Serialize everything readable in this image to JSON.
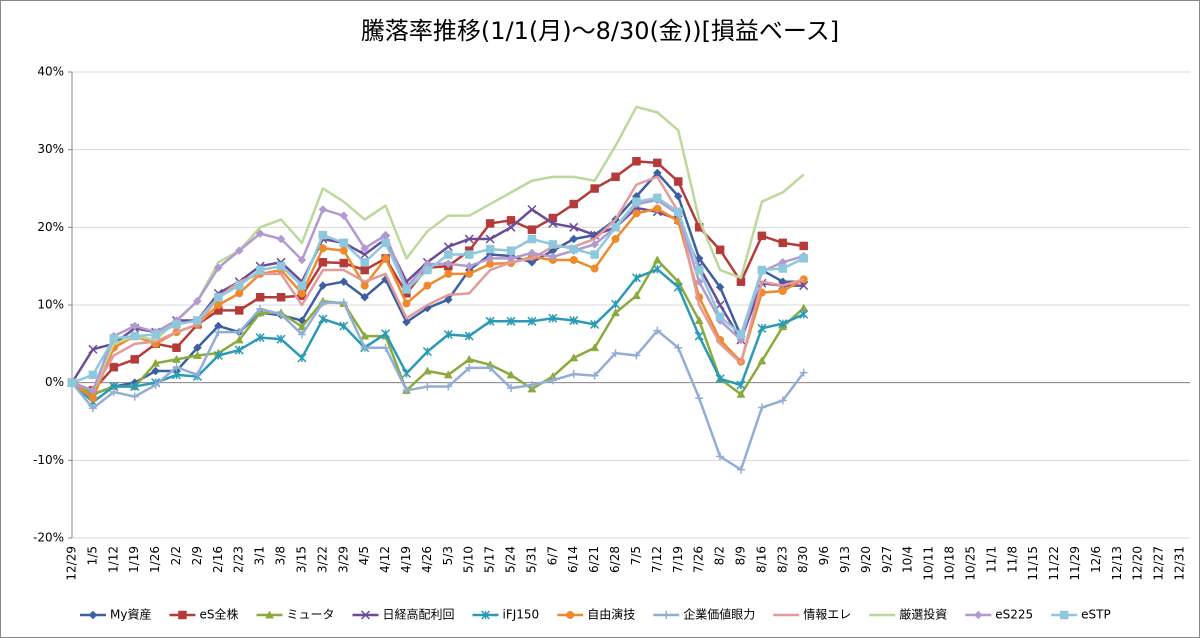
{
  "chart_data": {
    "type": "line",
    "title": "騰落率推移(1/1(月)～8/30(金))[損益ベース]",
    "categories": [
      "12/29",
      "1/5",
      "1/12",
      "1/19",
      "1/26",
      "2/2",
      "2/9",
      "2/16",
      "2/23",
      "3/1",
      "3/8",
      "3/15",
      "3/22",
      "3/29",
      "4/5",
      "4/12",
      "4/19",
      "4/26",
      "5/3",
      "5/10",
      "5/17",
      "5/24",
      "5/31",
      "6/7",
      "6/14",
      "6/21",
      "6/28",
      "7/5",
      "7/12",
      "7/19",
      "7/26",
      "8/2",
      "8/9",
      "8/16",
      "8/23",
      "8/30",
      "9/6",
      "9/13",
      "9/20",
      "9/27",
      "10/4",
      "10/11",
      "10/18",
      "10/25",
      "11/1",
      "11/8",
      "11/15",
      "11/22",
      "11/29",
      "12/6",
      "12/13",
      "12/20",
      "12/27",
      "12/31"
    ],
    "ylim": [
      -20,
      40
    ],
    "yticks": [
      {
        "value": -20,
        "label": "-20%"
      },
      {
        "value": -10,
        "label": "-10%"
      },
      {
        "value": 0,
        "label": "0%"
      },
      {
        "value": 10,
        "label": "10%"
      },
      {
        "value": 20,
        "label": "20%"
      },
      {
        "value": 30,
        "label": "30%"
      },
      {
        "value": 40,
        "label": "40%"
      }
    ],
    "grid": true,
    "legend": "bottom",
    "series": [
      {
        "name": "My資産",
        "color": "#3b5fa0",
        "marker": "diamond",
        "values": [
          0,
          -1.5,
          -0.5,
          0,
          1.5,
          1.5,
          4.5,
          7.3,
          6.5,
          9,
          8.7,
          8,
          12.5,
          13,
          11,
          13.3,
          7.8,
          9.6,
          10.7,
          14.5,
          16.5,
          16.3,
          15.5,
          17,
          18.5,
          19,
          21,
          24,
          27,
          24,
          16,
          12.3,
          6,
          14.5,
          13,
          13,
          null,
          null,
          null,
          null,
          null,
          null,
          null,
          null,
          null,
          null,
          null,
          null,
          null,
          null,
          null,
          null,
          null,
          null
        ]
      },
      {
        "name": "eS全株",
        "color": "#b53a3a",
        "marker": "square",
        "values": [
          0,
          -1,
          2,
          3,
          5,
          4.5,
          7.5,
          9.3,
          9.3,
          11,
          11,
          11.2,
          15.5,
          15.4,
          14.5,
          16,
          11.5,
          14.8,
          15,
          17,
          20.5,
          20.9,
          19.7,
          21.2,
          23,
          25,
          26.5,
          28.5,
          28.3,
          25.9,
          20,
          17.1,
          13,
          18.9,
          18,
          17.6,
          null,
          null,
          null,
          null,
          null,
          null,
          null,
          null,
          null,
          null,
          null,
          null,
          null,
          null,
          null,
          null,
          null,
          null
        ]
      },
      {
        "name": "ミュータ",
        "color": "#8aab3c",
        "marker": "triangle",
        "values": [
          0,
          -1.5,
          -0.5,
          -0.5,
          2.5,
          3,
          3.5,
          3.8,
          5.5,
          9,
          9,
          7.2,
          10.5,
          10.2,
          6,
          6,
          -1,
          1.5,
          1,
          3,
          2.3,
          1,
          -0.8,
          0.8,
          3.2,
          4.5,
          9,
          11.2,
          15.8,
          13,
          8,
          0.5,
          -1.5,
          2.8,
          7.2,
          9.6,
          null,
          null,
          null,
          null,
          null,
          null,
          null,
          null,
          null,
          null,
          null,
          null,
          null,
          null,
          null,
          null,
          null,
          null
        ]
      },
      {
        "name": "日経高配利回",
        "color": "#6a4d98",
        "marker": "x",
        "values": [
          0,
          4.3,
          5,
          7,
          6.5,
          8,
          8,
          11.5,
          13,
          15,
          15.5,
          13,
          18.5,
          18,
          16.5,
          18.5,
          13,
          15.5,
          17.5,
          18.5,
          18.5,
          20,
          22.3,
          20.5,
          20,
          19,
          20,
          22.5,
          22,
          21,
          15,
          10,
          5.5,
          12.8,
          12.5,
          12.5,
          null,
          null,
          null,
          null,
          null,
          null,
          null,
          null,
          null,
          null,
          null,
          null,
          null,
          null,
          null,
          null,
          null,
          null
        ]
      },
      {
        "name": "iFJ150",
        "color": "#2a9ab5",
        "marker": "asterisk",
        "values": [
          0,
          -2.5,
          -0.5,
          -0.5,
          0,
          1,
          0.8,
          3.5,
          4.2,
          5.8,
          5.6,
          3.2,
          8.2,
          7.3,
          4.5,
          6.3,
          1.2,
          4,
          6.2,
          6,
          7.9,
          7.9,
          7.9,
          8.3,
          8,
          7.5,
          10.1,
          13.5,
          14.6,
          12.3,
          6,
          0.5,
          -0.3,
          7,
          7.6,
          8.8,
          null,
          null,
          null,
          null,
          null,
          null,
          null,
          null,
          null,
          null,
          null,
          null,
          null,
          null,
          null,
          null,
          null,
          null
        ]
      },
      {
        "name": "自由演技",
        "color": "#ef8a2c",
        "marker": "circle",
        "values": [
          0,
          -2,
          4.5,
          6,
          5,
          6.5,
          7.5,
          10,
          11.5,
          14,
          14.5,
          11.5,
          17.3,
          17,
          12.5,
          16,
          10.2,
          12.5,
          14,
          14,
          15.3,
          15.4,
          16.2,
          15.8,
          15.8,
          14.7,
          18.5,
          21.8,
          22.4,
          20.8,
          11,
          5.5,
          2.7,
          11.6,
          11.8,
          13.3,
          null,
          null,
          null,
          null,
          null,
          null,
          null,
          null,
          null,
          null,
          null,
          null,
          null,
          null,
          null,
          null,
          null,
          null
        ]
      },
      {
        "name": "企業価値眼力",
        "color": "#93aed6",
        "marker": "plus",
        "values": [
          0,
          -3.3,
          -1.2,
          -1.8,
          -0.3,
          2,
          1,
          6.5,
          6.5,
          9.5,
          8.8,
          6.2,
          10.3,
          10.3,
          4.5,
          4.5,
          -1,
          -0.5,
          -0.5,
          1.9,
          1.9,
          -0.7,
          -0.3,
          0.3,
          1.1,
          0.9,
          3.8,
          3.5,
          6.7,
          4.5,
          -2,
          -9.5,
          -11.2,
          -3.2,
          -2.3,
          1.3,
          null,
          null,
          null,
          null,
          null,
          null,
          null,
          null,
          null,
          null,
          null,
          null,
          null,
          null,
          null,
          null,
          null,
          null
        ]
      },
      {
        "name": "情報エレ",
        "color": "#e39a9a",
        "marker": "none",
        "values": [
          0,
          -1,
          3.5,
          5,
          5.3,
          6.5,
          7.5,
          11,
          13,
          14,
          14,
          10,
          14.5,
          14.5,
          13,
          14,
          8.3,
          10,
          11.3,
          11.5,
          14.5,
          15.5,
          16,
          17.5,
          17.5,
          18.5,
          21,
          25.5,
          26.5,
          22,
          10,
          5,
          2.5,
          13,
          12.5,
          13.3,
          null,
          null,
          null,
          null,
          null,
          null,
          null,
          null,
          null,
          null,
          null,
          null,
          null,
          null,
          null,
          null,
          null,
          null
        ]
      },
      {
        "name": "厳選投資",
        "color": "#bcd89a",
        "marker": "none",
        "values": [
          0,
          -1,
          5,
          6,
          5.5,
          8,
          10.5,
          15.5,
          17,
          20,
          21,
          18,
          25,
          23.3,
          21,
          22.8,
          16,
          19.5,
          21.5,
          21.5,
          23,
          24.5,
          26,
          26.5,
          26.5,
          26,
          30.5,
          35.5,
          34.8,
          32.5,
          21,
          14.5,
          13.5,
          23.3,
          24.5,
          26.8,
          null,
          null,
          null,
          null,
          null,
          null,
          null,
          null,
          null,
          null,
          null,
          null,
          null,
          null,
          null,
          null,
          null,
          null
        ]
      },
      {
        "name": "eS225",
        "color": "#b29ad0",
        "marker": "diamond",
        "values": [
          0,
          -1,
          6,
          7.3,
          6.5,
          8,
          10.5,
          14.8,
          17,
          19.2,
          18.5,
          15.8,
          22.3,
          21.5,
          17.3,
          19,
          12.3,
          15.3,
          15.3,
          15,
          16,
          16,
          16.7,
          16.2,
          17,
          17.8,
          20,
          23,
          23.5,
          21.7,
          13,
          8,
          5.5,
          14.3,
          15.5,
          16.3,
          null,
          null,
          null,
          null,
          null,
          null,
          null,
          null,
          null,
          null,
          null,
          null,
          null,
          null,
          null,
          null,
          null,
          null
        ]
      },
      {
        "name": "eSTP",
        "color": "#8ec8dc",
        "marker": "square",
        "values": [
          0,
          1,
          5.7,
          6,
          6.2,
          7.5,
          8,
          11,
          12.5,
          14.5,
          15,
          12.5,
          19,
          18,
          15.5,
          18,
          12,
          14.5,
          16.5,
          16.5,
          17.2,
          17,
          18.5,
          17.8,
          17.2,
          16.5,
          20,
          23.3,
          23.8,
          22,
          14.5,
          8.5,
          6.2,
          14.5,
          14.7,
          16,
          null,
          null,
          null,
          null,
          null,
          null,
          null,
          null,
          null,
          null,
          null,
          null,
          null,
          null,
          null,
          null,
          null,
          null
        ]
      }
    ]
  }
}
